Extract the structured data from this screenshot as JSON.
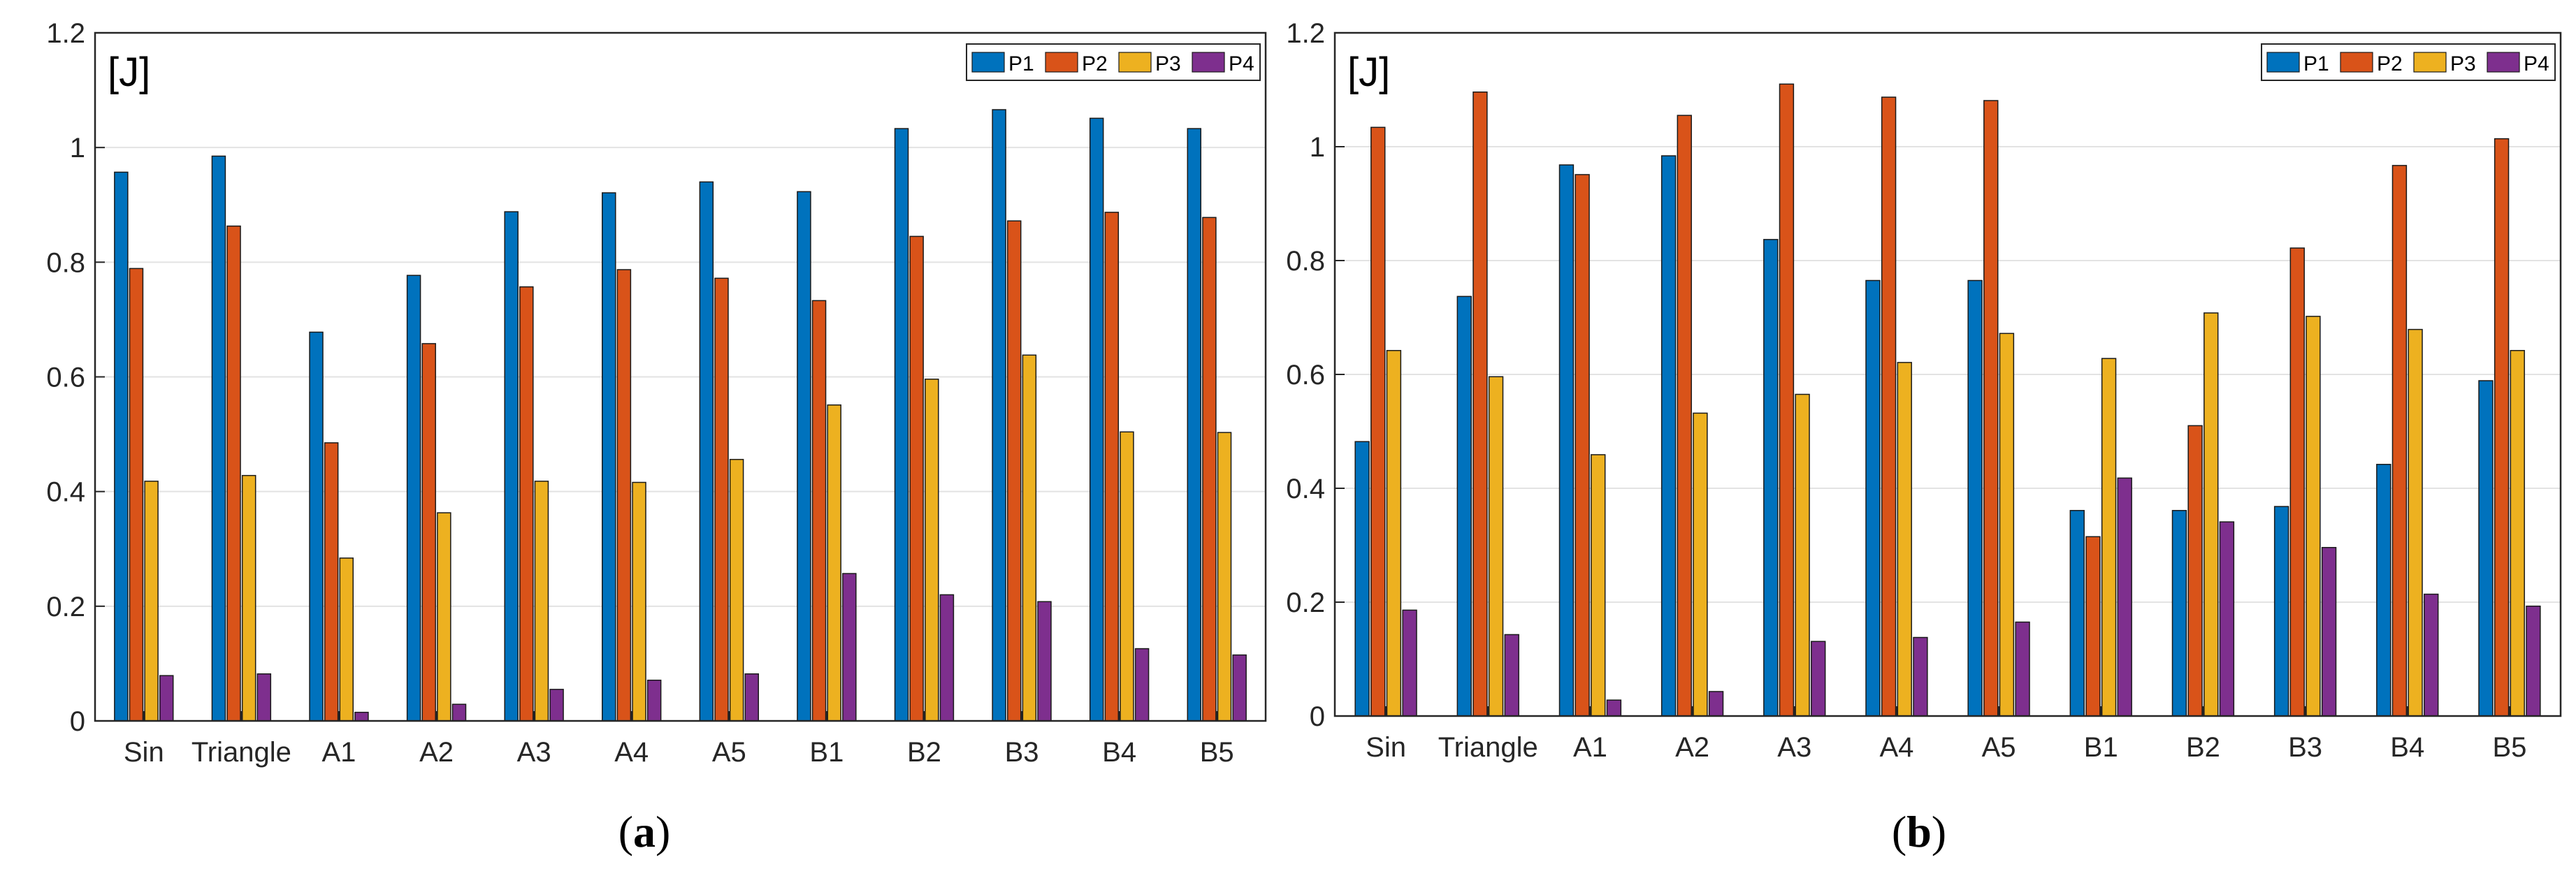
{
  "colors": {
    "P1": "#0072BD",
    "P2": "#D95319",
    "P3": "#EDB120",
    "P4": "#7E2F8E",
    "grid": "#e3e3e3",
    "axis": "#262626"
  },
  "chart_data": [
    {
      "type": "bar",
      "panel_label": "a",
      "unit_label": "[J]",
      "categories": [
        "Sin",
        "Triangle",
        "A1",
        "A2",
        "A3",
        "A4",
        "A5",
        "B1",
        "B2",
        "B3",
        "B4",
        "B5"
      ],
      "ylim": [
        0,
        1.2
      ],
      "yticks": [
        0,
        0.2,
        0.4,
        0.6,
        0.8,
        1,
        1.2
      ],
      "grid": true,
      "legend": "top-right",
      "series": [
        {
          "name": "P1",
          "values": [
            0.957,
            0.985,
            0.678,
            0.777,
            0.888,
            0.921,
            0.94,
            0.923,
            1.033,
            1.066,
            1.051,
            1.033
          ]
        },
        {
          "name": "P2",
          "values": [
            0.789,
            0.863,
            0.485,
            0.658,
            0.757,
            0.787,
            0.772,
            0.733,
            0.845,
            0.872,
            0.887,
            0.878
          ]
        },
        {
          "name": "P3",
          "values": [
            0.418,
            0.428,
            0.284,
            0.363,
            0.418,
            0.416,
            0.456,
            0.551,
            0.596,
            0.638,
            0.504,
            0.503
          ]
        },
        {
          "name": "P4",
          "values": [
            0.079,
            0.082,
            0.015,
            0.029,
            0.055,
            0.071,
            0.082,
            0.257,
            0.22,
            0.208,
            0.126,
            0.115
          ]
        }
      ]
    },
    {
      "type": "bar",
      "panel_label": "b",
      "unit_label": "[J]",
      "categories": [
        "Sin",
        "Triangle",
        "A1",
        "A2",
        "A3",
        "A4",
        "A5",
        "B1",
        "B2",
        "B3",
        "B4",
        "B5"
      ],
      "ylim": [
        0,
        1.2
      ],
      "yticks": [
        0,
        0.2,
        0.4,
        0.6,
        0.8,
        1,
        1.2
      ],
      "grid": true,
      "legend": "top-right",
      "series": [
        {
          "name": "P1",
          "values": [
            0.482,
            0.737,
            0.968,
            0.984,
            0.837,
            0.765,
            0.765,
            0.361,
            0.361,
            0.368,
            0.442,
            0.589
          ]
        },
        {
          "name": "P2",
          "values": [
            1.034,
            1.096,
            0.951,
            1.055,
            1.11,
            1.087,
            1.081,
            0.315,
            0.51,
            0.822,
            0.967,
            1.014
          ]
        },
        {
          "name": "P3",
          "values": [
            0.642,
            0.596,
            0.459,
            0.532,
            0.565,
            0.621,
            0.672,
            0.628,
            0.708,
            0.702,
            0.679,
            0.642
          ]
        },
        {
          "name": "P4",
          "values": [
            0.186,
            0.143,
            0.028,
            0.043,
            0.131,
            0.138,
            0.165,
            0.418,
            0.341,
            0.296,
            0.214,
            0.193
          ]
        }
      ]
    }
  ]
}
